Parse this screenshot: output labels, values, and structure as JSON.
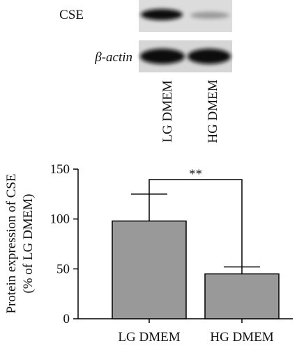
{
  "blot": {
    "rows": [
      "CSE",
      "β-actin"
    ],
    "lanes": [
      "LG DMEM",
      "HG DMEM"
    ]
  },
  "chart_data": {
    "type": "bar",
    "ylabel": [
      "Protein expression of CSE",
      "(% of LG DMEM)"
    ],
    "categories": [
      "LG DMEM",
      "HG DMEM"
    ],
    "values": [
      98,
      45
    ],
    "errors": [
      27,
      7
    ],
    "color": "#999999",
    "ylim": [
      0,
      150
    ],
    "yticks": [
      0,
      50,
      100,
      150
    ],
    "annotation": "**"
  }
}
